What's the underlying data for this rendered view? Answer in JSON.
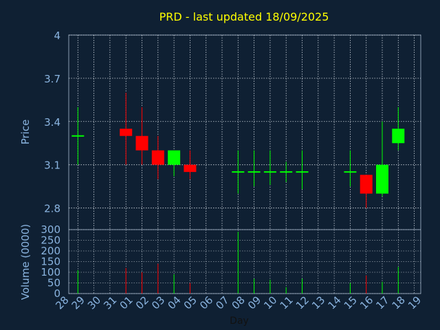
{
  "chart_data": [
    {
      "type": "candlestick",
      "title": "PRD - last updated 18/09/2025",
      "ylabel": "Price",
      "xlabel": "",
      "ylim": [
        2.65,
        4.0
      ],
      "yticks": [
        2.8,
        3.1,
        3.4,
        3.7,
        4
      ],
      "ytick_labels": [
        "2.8",
        "3.1",
        "3.4",
        "3.7",
        "4"
      ],
      "grid": true,
      "up_color": "#00ff00",
      "down_color": "#ff0000",
      "candles": [
        {
          "day": "28",
          "open": 3.3,
          "high": 3.3,
          "low": 3.3,
          "close": 3.3
        },
        {
          "day": "29",
          "open": 3.3,
          "high": 3.5,
          "low": 3.1,
          "close": 3.3
        },
        {
          "day": "01",
          "open": 3.35,
          "high": 3.6,
          "low": 3.1,
          "close": 3.3
        },
        {
          "day": "02",
          "open": 3.3,
          "high": 3.5,
          "low": 3.1,
          "close": 3.2
        },
        {
          "day": "03",
          "open": 3.2,
          "high": 3.3,
          "low": 3.0,
          "close": 3.1
        },
        {
          "day": "04",
          "open": 3.1,
          "high": 3.2,
          "low": 3.02,
          "close": 3.2
        },
        {
          "day": "05",
          "open": 3.1,
          "high": 3.2,
          "low": 3.0,
          "close": 3.05
        },
        {
          "day": "08",
          "open": 3.05,
          "high": 3.2,
          "low": 2.9,
          "close": 3.05
        },
        {
          "day": "09",
          "open": 3.05,
          "high": 3.2,
          "low": 2.95,
          "close": 3.05
        },
        {
          "day": "10",
          "open": 3.05,
          "high": 3.2,
          "low": 2.96,
          "close": 3.05
        },
        {
          "day": "11",
          "open": 3.05,
          "high": 3.12,
          "low": 2.98,
          "close": 3.05
        },
        {
          "day": "12",
          "open": 3.05,
          "high": 3.2,
          "low": 2.93,
          "close": 3.05
        },
        {
          "day": "15",
          "open": 3.05,
          "high": 3.2,
          "low": 2.95,
          "close": 3.05
        },
        {
          "day": "16",
          "open": 3.03,
          "high": 3.03,
          "low": 2.8,
          "close": 2.9
        },
        {
          "day": "17",
          "open": 2.9,
          "high": 3.4,
          "low": 2.88,
          "close": 3.1
        },
        {
          "day": "18",
          "open": 3.25,
          "high": 3.5,
          "low": 3.2,
          "close": 3.35
        }
      ]
    },
    {
      "type": "bar",
      "ylabel": "Volume (0000)",
      "xlabel": "Day",
      "ylim": [
        0,
        300
      ],
      "yticks": [
        0,
        50,
        100,
        150,
        200,
        250,
        300
      ],
      "ytick_labels": [
        "0",
        "50",
        "100",
        "150",
        "200",
        "250",
        "300"
      ],
      "categories": [
        "28",
        "29",
        "30",
        "31",
        "01",
        "02",
        "03",
        "04",
        "05",
        "06",
        "07",
        "08",
        "09",
        "10",
        "11",
        "12",
        "13",
        "14",
        "15",
        "16",
        "17",
        "18",
        "19"
      ],
      "bars": [
        {
          "day": "29",
          "value": 110,
          "direction": "up"
        },
        {
          "day": "01",
          "value": 120,
          "direction": "down"
        },
        {
          "day": "02",
          "value": 100,
          "direction": "down"
        },
        {
          "day": "03",
          "value": 140,
          "direction": "down"
        },
        {
          "day": "04",
          "value": 90,
          "direction": "up"
        },
        {
          "day": "05",
          "value": 50,
          "direction": "down"
        },
        {
          "day": "08",
          "value": 290,
          "direction": "up"
        },
        {
          "day": "09",
          "value": 70,
          "direction": "up"
        },
        {
          "day": "10",
          "value": 65,
          "direction": "up"
        },
        {
          "day": "11",
          "value": 30,
          "direction": "up"
        },
        {
          "day": "12",
          "value": 70,
          "direction": "up"
        },
        {
          "day": "15",
          "value": 50,
          "direction": "up"
        },
        {
          "day": "16",
          "value": 85,
          "direction": "down"
        },
        {
          "day": "17",
          "value": 55,
          "direction": "up"
        },
        {
          "day": "18",
          "value": 125,
          "direction": "up"
        }
      ]
    }
  ],
  "colors": {
    "background": "#0f2033",
    "axis": "#8a9bb0",
    "grid": "#d0d8e0",
    "text": "#8ab4e0",
    "title": "#ffff00",
    "up": "#00ff00",
    "down": "#ff0000"
  }
}
